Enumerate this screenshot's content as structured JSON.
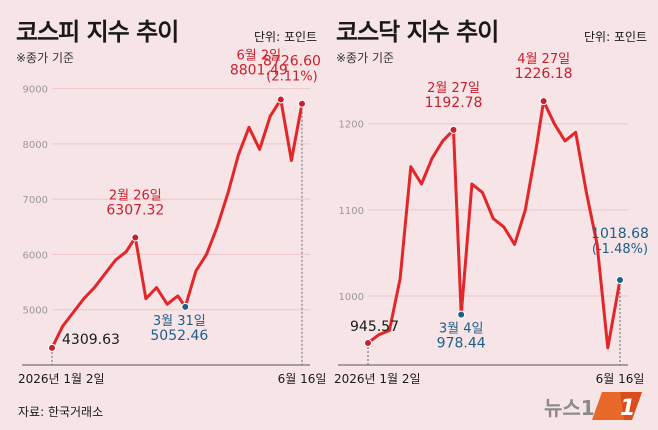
{
  "kospi": {
    "title": "코스피 지수 추이",
    "unit": "단위: 포인트",
    "note": "※종가 기준",
    "start_date": "2026년 1월 2일",
    "end_date": "6월 16일"
  },
  "kosdaq": {
    "title": "코스닥 지수 추이",
    "unit": "단위: 포인트",
    "note": "※종가 기준",
    "start_date": "2026년 1월 2일",
    "end_date": "6월 16일"
  },
  "source": "자료: 한국거래소",
  "logo_text": "뉴스1",
  "colors": {
    "line": "#e3262a",
    "label_red": "#c8202c",
    "label_blue": "#1d5f8a",
    "background": "#f7e4e6"
  },
  "chart_data": [
    {
      "type": "line",
      "title": "코스피 지수 추이",
      "ylim": [
        4000,
        9300
      ],
      "yticks": [
        5000,
        6000,
        7000,
        8000,
        9000
      ],
      "ytick_labels": [
        "5000",
        "6000",
        "7000",
        "8000",
        "9000"
      ],
      "xticks": [
        "2026년 1월 2일",
        "6월 16일"
      ],
      "grid": true,
      "x": [
        "2026-01-02",
        "2026-01-09",
        "2026-01-16",
        "2026-01-23",
        "2026-01-30",
        "2026-02-06",
        "2026-02-13",
        "2026-02-20",
        "2026-02-26",
        "2026-03-05",
        "2026-03-12",
        "2026-03-19",
        "2026-03-26",
        "2026-03-31",
        "2026-04-07",
        "2026-04-14",
        "2026-04-21",
        "2026-04-28",
        "2026-05-05",
        "2026-05-12",
        "2026-05-19",
        "2026-05-26",
        "2026-06-02",
        "2026-06-09",
        "2026-06-16"
      ],
      "values": [
        4309.63,
        4700,
        4950,
        5200,
        5400,
        5650,
        5900,
        6050,
        6307.32,
        5200,
        5400,
        5100,
        5250,
        5052.46,
        5700,
        6000,
        6500,
        7100,
        7800,
        8300,
        7900,
        8500,
        8801.49,
        7700,
        8726.6
      ],
      "annotations": [
        {
          "x": "2026-01-02",
          "value": 4309.63,
          "lines": [
            "4309.63"
          ],
          "color": "dark"
        },
        {
          "x": "2026-02-26",
          "value": 6307.32,
          "lines": [
            "2월 26일",
            "6307.32"
          ],
          "color": "red"
        },
        {
          "x": "2026-03-31",
          "value": 5052.46,
          "lines": [
            "3월 31일",
            "5052.46"
          ],
          "color": "blue"
        },
        {
          "x": "2026-06-02",
          "value": 8801.49,
          "lines": [
            "6월 2일",
            "8801.49"
          ],
          "color": "red"
        },
        {
          "x": "2026-06-16",
          "value": 8726.6,
          "lines": [
            "8726.60",
            "(2.11%)"
          ],
          "color": "red"
        }
      ]
    },
    {
      "type": "line",
      "title": "코스닥 지수 추이",
      "ylim": [
        920,
        1260
      ],
      "yticks": [
        1000,
        1100,
        1200
      ],
      "ytick_labels": [
        "1000",
        "1100",
        "1200"
      ],
      "xticks": [
        "2026년 1월 2일",
        "6월 16일"
      ],
      "grid": true,
      "x": [
        "2026-01-02",
        "2026-01-09",
        "2026-01-16",
        "2026-01-23",
        "2026-01-30",
        "2026-02-06",
        "2026-02-13",
        "2026-02-20",
        "2026-02-27",
        "2026-03-04",
        "2026-03-11",
        "2026-03-18",
        "2026-03-25",
        "2026-04-01",
        "2026-04-08",
        "2026-04-15",
        "2026-04-22",
        "2026-04-27",
        "2026-05-04",
        "2026-05-11",
        "2026-05-18",
        "2026-05-25",
        "2026-06-01",
        "2026-06-08",
        "2026-06-16"
      ],
      "values": [
        945.57,
        955,
        960,
        1020,
        1150,
        1130,
        1160,
        1180,
        1192.78,
        978.44,
        1130,
        1120,
        1090,
        1080,
        1060,
        1100,
        1170,
        1226.18,
        1200,
        1180,
        1190,
        1120,
        1060,
        940,
        1018.68
      ],
      "annotations": [
        {
          "x": "2026-01-02",
          "value": 945.57,
          "lines": [
            "945.57"
          ],
          "color": "dark"
        },
        {
          "x": "2026-02-27",
          "value": 1192.78,
          "lines": [
            "2월 27일",
            "1192.78"
          ],
          "color": "red"
        },
        {
          "x": "2026-03-04",
          "value": 978.44,
          "lines": [
            "3월 4일",
            "978.44"
          ],
          "color": "blue"
        },
        {
          "x": "2026-04-27",
          "value": 1226.18,
          "lines": [
            "4월 27일",
            "1226.18"
          ],
          "color": "red"
        },
        {
          "x": "2026-06-16",
          "value": 1018.68,
          "lines": [
            "1018.68",
            "(-1.48%)"
          ],
          "color": "blue"
        }
      ]
    }
  ]
}
